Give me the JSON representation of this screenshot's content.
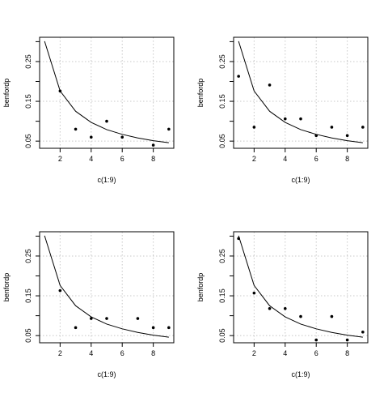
{
  "chart_data": [
    {
      "type": "scatter",
      "title": "",
      "xlabel": "c(1:9)",
      "ylabel": "benfordp",
      "xlim": [
        0.68,
        9.32
      ],
      "ylim": [
        0.032,
        0.311
      ],
      "xticks": [
        {
          "v": 2,
          "label": "2"
        },
        {
          "v": 4,
          "label": "4"
        },
        {
          "v": 6,
          "label": "6"
        },
        {
          "v": 8,
          "label": "8"
        }
      ],
      "yticks": [
        {
          "v": 0.05,
          "label": "0.05"
        },
        {
          "v": 0.15,
          "label": "0.15"
        },
        {
          "v": 0.25,
          "label": "0.25"
        }
      ],
      "grid": true,
      "points": {
        "x": [
          2,
          3,
          4,
          5,
          6,
          8,
          9
        ],
        "y": [
          0.176,
          0.08,
          0.06,
          0.1,
          0.06,
          0.04,
          0.08
        ]
      },
      "curve": {
        "x": [
          1,
          2,
          3,
          4,
          5,
          6,
          7,
          8,
          9
        ],
        "y": [
          0.301,
          0.176,
          0.125,
          0.097,
          0.079,
          0.067,
          0.058,
          0.051,
          0.046
        ]
      }
    },
    {
      "type": "scatter",
      "title": "",
      "xlabel": "c(1:9)",
      "ylabel": "benfordp",
      "xlim": [
        0.68,
        9.32
      ],
      "ylim": [
        0.032,
        0.311
      ],
      "xticks": [
        {
          "v": 2,
          "label": "2"
        },
        {
          "v": 4,
          "label": "4"
        },
        {
          "v": 6,
          "label": "6"
        },
        {
          "v": 8,
          "label": "8"
        }
      ],
      "yticks": [
        {
          "v": 0.05,
          "label": "0.05"
        },
        {
          "v": 0.15,
          "label": "0.15"
        },
        {
          "v": 0.25,
          "label": "0.25"
        }
      ],
      "grid": true,
      "points": {
        "x": [
          1,
          2,
          3,
          4,
          5,
          6,
          7,
          8,
          9
        ],
        "y": [
          0.213,
          0.085,
          0.191,
          0.106,
          0.106,
          0.064,
          0.085,
          0.064,
          0.085
        ]
      },
      "curve": {
        "x": [
          1,
          2,
          3,
          4,
          5,
          6,
          7,
          8,
          9
        ],
        "y": [
          0.301,
          0.176,
          0.125,
          0.097,
          0.079,
          0.067,
          0.058,
          0.051,
          0.046
        ]
      }
    },
    {
      "type": "scatter",
      "title": "",
      "xlabel": "c(1:9)",
      "ylabel": "benfordp",
      "xlim": [
        0.68,
        9.32
      ],
      "ylim": [
        0.032,
        0.311
      ],
      "xticks": [
        {
          "v": 2,
          "label": "2"
        },
        {
          "v": 4,
          "label": "4"
        },
        {
          "v": 6,
          "label": "6"
        },
        {
          "v": 8,
          "label": "8"
        }
      ],
      "yticks": [
        {
          "v": 0.05,
          "label": "0.05"
        },
        {
          "v": 0.15,
          "label": "0.15"
        },
        {
          "v": 0.25,
          "label": "0.25"
        }
      ],
      "grid": true,
      "points": {
        "x": [
          2,
          3,
          4,
          5,
          7,
          8,
          9
        ],
        "y": [
          0.163,
          0.07,
          0.093,
          0.093,
          0.093,
          0.07,
          0.07
        ]
      },
      "curve": {
        "x": [
          1,
          2,
          3,
          4,
          5,
          6,
          7,
          8,
          9
        ],
        "y": [
          0.301,
          0.176,
          0.125,
          0.097,
          0.079,
          0.067,
          0.058,
          0.051,
          0.046
        ]
      }
    },
    {
      "type": "scatter",
      "title": "",
      "xlabel": "c(1:9)",
      "ylabel": "benfordp",
      "xlim": [
        0.68,
        9.32
      ],
      "ylim": [
        0.032,
        0.311
      ],
      "xticks": [
        {
          "v": 2,
          "label": "2"
        },
        {
          "v": 4,
          "label": "4"
        },
        {
          "v": 6,
          "label": "6"
        },
        {
          "v": 8,
          "label": "8"
        }
      ],
      "yticks": [
        {
          "v": 0.05,
          "label": "0.05"
        },
        {
          "v": 0.15,
          "label": "0.15"
        },
        {
          "v": 0.25,
          "label": "0.25"
        }
      ],
      "grid": true,
      "points": {
        "x": [
          1,
          2,
          3,
          4,
          5,
          6,
          7,
          8,
          9
        ],
        "y": [
          0.294,
          0.157,
          0.118,
          0.118,
          0.098,
          0.039,
          0.098,
          0.039,
          0.059
        ]
      },
      "curve": {
        "x": [
          1,
          2,
          3,
          4,
          5,
          6,
          7,
          8,
          9
        ],
        "y": [
          0.301,
          0.176,
          0.125,
          0.097,
          0.079,
          0.067,
          0.058,
          0.051,
          0.046
        ]
      }
    }
  ]
}
